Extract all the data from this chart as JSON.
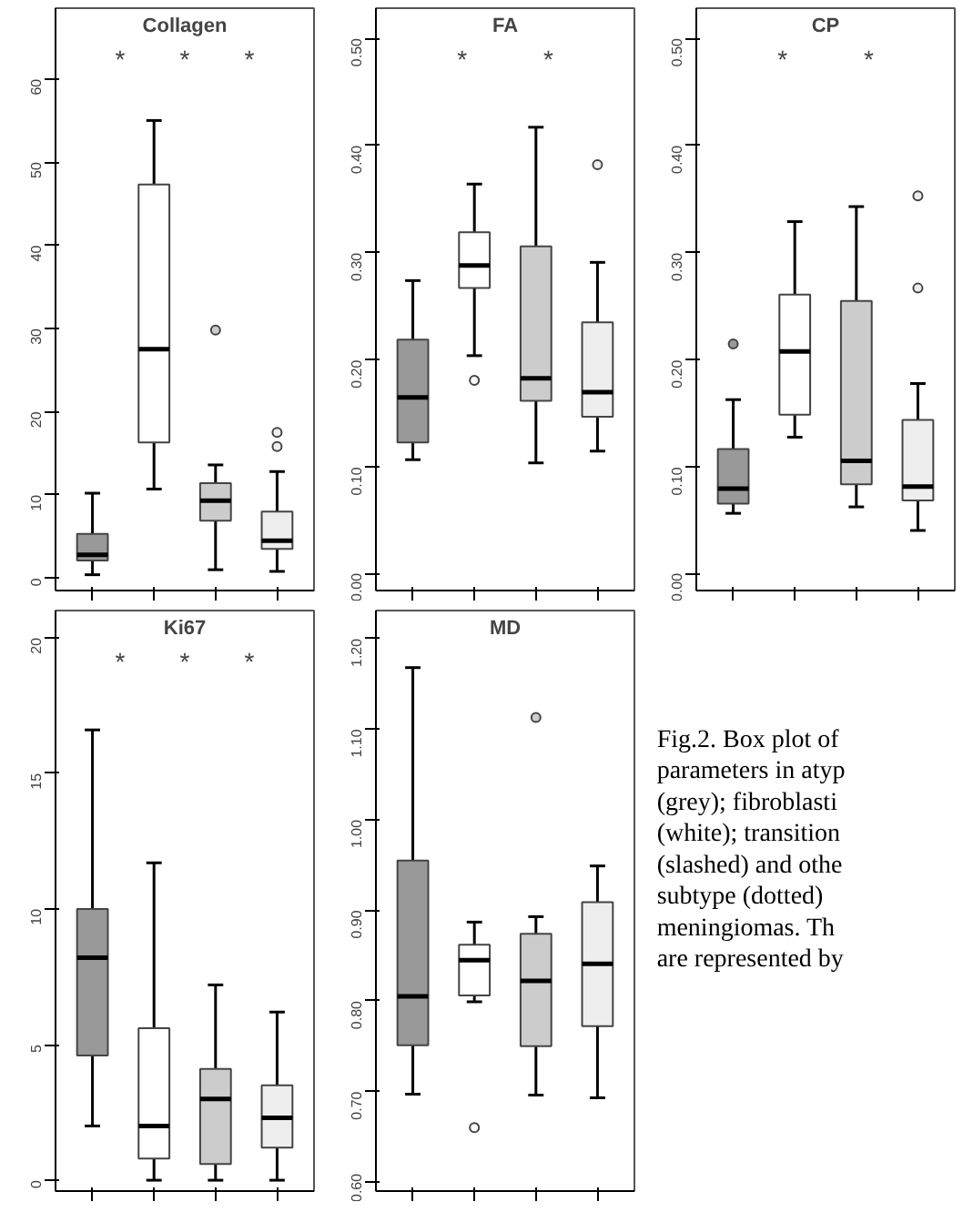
{
  "chart_data": [
    {
      "type": "box",
      "title": "Collagen",
      "categories": [
        null,
        null,
        null,
        null
      ],
      "colors": [
        "#999999",
        "#ffffff",
        "#cccccc",
        "#eeeeee"
      ],
      "tick_labels": "y",
      "grid": false,
      "ylim": [
        -1.5,
        68.5
      ],
      "yticks": [
        0,
        10,
        20,
        30,
        40,
        50,
        60
      ],
      "boxes": [
        {
          "low": 0.4,
          "q1": 2.1,
          "median": 2.8,
          "q3": 5.3,
          "high": 10.2
        },
        {
          "low": 10.7,
          "q1": 16.3,
          "median": 27.5,
          "q3": 47.3,
          "high": 55
        },
        {
          "low": 1,
          "q1": 6.9,
          "median": 9.3,
          "q3": 11.4,
          "high": 13.6,
          "outliers": [
            29.8
          ]
        },
        {
          "low": 0.8,
          "q1": 3.5,
          "median": 4.5,
          "q3": 8,
          "high": 12.8,
          "outliers": [
            15.8,
            17.5
          ]
        }
      ],
      "annotations": [
        "*",
        "*",
        "*"
      ]
    },
    {
      "type": "box",
      "title": "FA",
      "categories": [
        null,
        null,
        null,
        null
      ],
      "colors": [
        "#999999",
        "#ffffff",
        "#cccccc",
        "#eeeeee"
      ],
      "tick_labels": "y",
      "grid": false,
      "ylim": [
        -0.015,
        0.528
      ],
      "yticks": [
        {
          "value": 0,
          "label": "0.00"
        },
        {
          "value": 0.1,
          "label": "0.10"
        },
        {
          "value": 0.2,
          "label": "0.20"
        },
        {
          "value": 0.3,
          "label": "0.30"
        },
        {
          "value": 0.4,
          "label": "0.40"
        },
        {
          "value": 0.5,
          "label": "0.50"
        }
      ],
      "boxes": [
        {
          "low": 0.107,
          "q1": 0.123,
          "median": 0.165,
          "q3": 0.219,
          "high": 0.274
        },
        {
          "low": 0.204,
          "q1": 0.267,
          "median": 0.288,
          "q3": 0.319,
          "high": 0.364,
          "outliers": [
            0.181
          ]
        },
        {
          "low": 0.104,
          "q1": 0.162,
          "median": 0.183,
          "q3": 0.306,
          "high": 0.417
        },
        {
          "low": 0.115,
          "q1": 0.147,
          "median": 0.17,
          "q3": 0.235,
          "high": 0.291,
          "outliers": [
            0.382
          ]
        }
      ],
      "annotations": [
        "*",
        "*"
      ]
    },
    {
      "type": "box",
      "title": "CP",
      "categories": [
        null,
        null,
        null,
        null
      ],
      "colors": [
        "#999999",
        "#ffffff",
        "#cccccc",
        "#eeeeee"
      ],
      "tick_labels": "y",
      "grid": false,
      "ylim": [
        -0.015,
        0.528
      ],
      "yticks": [
        {
          "value": 0,
          "label": "0.00"
        },
        {
          "value": 0.1,
          "label": "0.10"
        },
        {
          "value": 0.2,
          "label": "0.20"
        },
        {
          "value": 0.3,
          "label": "0.30"
        },
        {
          "value": 0.4,
          "label": "0.40"
        },
        {
          "value": 0.5,
          "label": "0.50"
        }
      ],
      "boxes": [
        {
          "low": 0.057,
          "q1": 0.066,
          "median": 0.08,
          "q3": 0.117,
          "high": 0.163,
          "outliers": [
            0.215
          ]
        },
        {
          "low": 0.128,
          "q1": 0.149,
          "median": 0.208,
          "q3": 0.261,
          "high": 0.329
        },
        {
          "low": 0.063,
          "q1": 0.084,
          "median": 0.106,
          "q3": 0.255,
          "high": 0.343
        },
        {
          "low": 0.041,
          "q1": 0.069,
          "median": 0.082,
          "q3": 0.144,
          "high": 0.178,
          "outliers": [
            0.267,
            0.353
          ]
        }
      ],
      "annotations": [
        "*",
        "*"
      ]
    },
    {
      "type": "box",
      "title": "Ki67",
      "categories": [
        null,
        null,
        null,
        null
      ],
      "colors": [
        "#999999",
        "#ffffff",
        "#cccccc",
        "#eeeeee"
      ],
      "tick_labels": "y",
      "grid": false,
      "ylim": [
        -0.4,
        21
      ],
      "yticks": [
        0,
        5,
        10,
        15,
        20
      ],
      "boxes": [
        {
          "low": 2,
          "q1": 4.6,
          "median": 8.2,
          "q3": 10,
          "high": 16.6
        },
        {
          "low": 0,
          "q1": 0.8,
          "median": 2,
          "q3": 5.6,
          "high": 11.7
        },
        {
          "low": 0,
          "q1": 0.6,
          "median": 3,
          "q3": 4.1,
          "high": 7.2
        },
        {
          "low": 0,
          "q1": 1.2,
          "median": 2.3,
          "q3": 3.5,
          "high": 6.2
        }
      ],
      "annotations": [
        "*",
        "*",
        "*"
      ]
    },
    {
      "type": "box",
      "title": "MD",
      "categories": [
        null,
        null,
        null,
        null
      ],
      "colors": [
        "#999999",
        "#ffffff",
        "#cccccc",
        "#eeeeee"
      ],
      "tick_labels": "y",
      "grid": false,
      "ylim": [
        0.59,
        1.231
      ],
      "yticks": [
        {
          "value": 0.6,
          "label": "0.60"
        },
        {
          "value": 0.7,
          "label": "0.70"
        },
        {
          "value": 0.8,
          "label": "0.80"
        },
        {
          "value": 0.9,
          "label": "0.90"
        },
        {
          "value": 1.0,
          "label": "1.00"
        },
        {
          "value": 1.1,
          "label": "1.10"
        },
        {
          "value": 1.2,
          "label": "1.20"
        }
      ],
      "boxes": [
        {
          "low": 0.697,
          "q1": 0.751,
          "median": 0.805,
          "q3": 0.955,
          "high": 1.168
        },
        {
          "low": 0.799,
          "q1": 0.806,
          "median": 0.845,
          "q3": 0.862,
          "high": 0.887,
          "outliers": [
            0.66
          ]
        },
        {
          "low": 0.696,
          "q1": 0.75,
          "median": 0.822,
          "q3": 0.874,
          "high": 0.893,
          "outliers": [
            1.113
          ]
        },
        {
          "low": 0.693,
          "q1": 0.772,
          "median": 0.841,
          "q3": 0.909,
          "high": 0.949
        }
      ]
    },
    {
      "type": "other",
      "annotations": [
        "Fig.2. Box plot of\nparameters in atyp\n(grey); fibroblasti\n(white); transition\n(slashed) and othe\nsubtype (dotted)\nmeningiomas. Th\nare represented by"
      ]
    }
  ]
}
